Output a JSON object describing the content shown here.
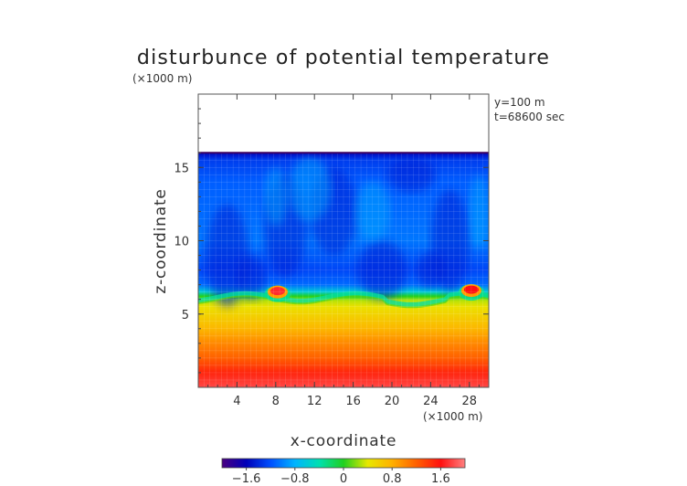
{
  "chart_data": {
    "type": "heatmap",
    "title": "disturbunce of potential temperature",
    "unit_top": "(×1000 m)",
    "unit_x": "(×1000 m)",
    "annotation_lines": [
      "y=100 m",
      "t=68600 sec"
    ],
    "xlabel": "x-coordinate",
    "ylabel": "z-coordinate",
    "xlim": [
      0,
      30
    ],
    "ylim": [
      0,
      20
    ],
    "xticks": [
      4,
      8,
      12,
      16,
      20,
      24,
      28
    ],
    "yticks": [
      5,
      10,
      15
    ],
    "top_boundary_height": 16.0,
    "colorbar": {
      "range": [
        -2.0,
        2.0
      ],
      "tick_values": [
        -1.6,
        -0.8,
        0,
        0.8,
        1.6
      ],
      "tick_labels": [
        "−1.6",
        "−0.8",
        "0",
        "0.8",
        "1.6"
      ],
      "colors": [
        "#4a0080",
        "#0000b8",
        "#0050ff",
        "#00b4ff",
        "#00e0b0",
        "#20d020",
        "#e8e800",
        "#ffb000",
        "#ff6000",
        "#ff1010",
        "#ff8080"
      ]
    },
    "field_profile": {
      "z": [
        0,
        1,
        2,
        3,
        4,
        5,
        5.5,
        5.9,
        6.2,
        6.5,
        7,
        8,
        10,
        12,
        14,
        15.5,
        16
      ],
      "value": [
        1.8,
        1.5,
        1.2,
        1.0,
        0.75,
        0.55,
        0.45,
        0.3,
        0.0,
        -0.6,
        -1.1,
        -1.25,
        -1.05,
        -1.1,
        -1.15,
        -1.3,
        -1.6
      ]
    },
    "features": [
      {
        "label": "warm cell",
        "x": 8.2,
        "z": 6.5,
        "value": 1.7
      },
      {
        "label": "warm cell",
        "x": 28.2,
        "z": 6.6,
        "value": 1.6
      }
    ]
  }
}
